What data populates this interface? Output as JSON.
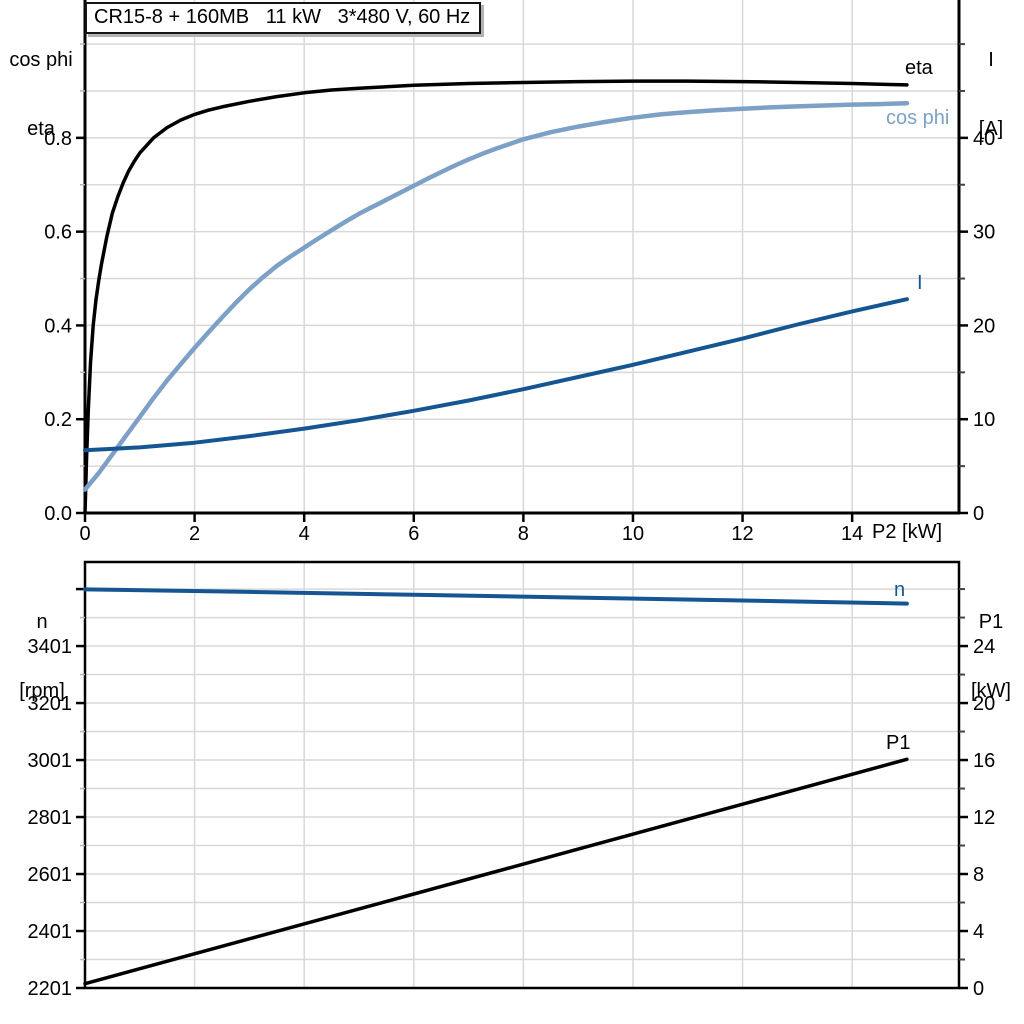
{
  "title_box": "CR15-8 + 160MB   11 kW   3*480 V, 60 Hz",
  "colors": {
    "black": "#000000",
    "light_blue": "#7DA0C6",
    "dark_blue": "#155592",
    "grid": "#d8d8d8",
    "minor_tick": "#b8b8b8",
    "frame": "#000000",
    "shadow": "#b3b3b3"
  },
  "chart_data": [
    {
      "type": "line",
      "id": "efficiency-powerfactor-current-vs-P2",
      "x_axis": {
        "title": "P2 [kW]",
        "tick_labels": [
          "0",
          "2",
          "4",
          "6",
          "8",
          "10",
          "12",
          "14"
        ],
        "tick_values": [
          0,
          2,
          4,
          6,
          8,
          10,
          12,
          14
        ],
        "range": [
          0,
          15.95
        ],
        "grid_step": 2
      },
      "y_left": {
        "title_line1": "cos phi",
        "title_line2": "eta",
        "tick_labels": [
          "0.0",
          "0.2",
          "0.4",
          "0.6",
          "0.8"
        ],
        "tick_values": [
          0,
          0.2,
          0.4,
          0.6,
          0.8
        ],
        "extra_ticks": [],
        "range": [
          0,
          1.094
        ],
        "minor_step": 0.1
      },
      "y_right": {
        "title_line1": "I",
        "title_line2": "[A]",
        "tick_labels": [
          "0",
          "10",
          "20",
          "30",
          "40"
        ],
        "tick_values": [
          0,
          10,
          20,
          30,
          40
        ],
        "range": [
          0,
          54.7
        ],
        "minor_step": 5
      },
      "series": [
        {
          "name": "eta",
          "label": "eta",
          "axis": "left",
          "color_key": "black",
          "width": 3.5,
          "points": [
            [
              0,
              0
            ],
            [
              0.03,
              0.12
            ],
            [
              0.06,
              0.22
            ],
            [
              0.1,
              0.32
            ],
            [
              0.15,
              0.4
            ],
            [
              0.2,
              0.455
            ],
            [
              0.25,
              0.495
            ],
            [
              0.3,
              0.53
            ],
            [
              0.4,
              0.59
            ],
            [
              0.5,
              0.64
            ],
            [
              0.6,
              0.675
            ],
            [
              0.7,
              0.705
            ],
            [
              0.8,
              0.73
            ],
            [
              0.9,
              0.75
            ],
            [
              1.0,
              0.768
            ],
            [
              1.25,
              0.8
            ],
            [
              1.5,
              0.822
            ],
            [
              1.75,
              0.838
            ],
            [
              2.0,
              0.85
            ],
            [
              2.25,
              0.859
            ],
            [
              2.5,
              0.866
            ],
            [
              3.0,
              0.878
            ],
            [
              3.5,
              0.888
            ],
            [
              4.0,
              0.896
            ],
            [
              4.5,
              0.902
            ],
            [
              5.0,
              0.906
            ],
            [
              5.5,
              0.909
            ],
            [
              6.0,
              0.912
            ],
            [
              6.5,
              0.914
            ],
            [
              7.0,
              0.916
            ],
            [
              8.0,
              0.918
            ],
            [
              9.0,
              0.92
            ],
            [
              10.0,
              0.921
            ],
            [
              11.0,
              0.921
            ],
            [
              12.0,
              0.92
            ],
            [
              13.0,
              0.918
            ],
            [
              14.0,
              0.916
            ],
            [
              15.0,
              0.913
            ]
          ]
        },
        {
          "name": "cos phi",
          "label": "cos phi",
          "axis": "left",
          "color_key": "light_blue",
          "width": 4.5,
          "points": [
            [
              0,
              0.05
            ],
            [
              0.25,
              0.085
            ],
            [
              0.5,
              0.125
            ],
            [
              0.75,
              0.165
            ],
            [
              1.0,
              0.205
            ],
            [
              1.25,
              0.245
            ],
            [
              1.5,
              0.283
            ],
            [
              1.75,
              0.318
            ],
            [
              2.0,
              0.352
            ],
            [
              2.25,
              0.385
            ],
            [
              2.5,
              0.417
            ],
            [
              2.75,
              0.448
            ],
            [
              3.0,
              0.477
            ],
            [
              3.25,
              0.503
            ],
            [
              3.5,
              0.527
            ],
            [
              3.75,
              0.547
            ],
            [
              4.0,
              0.566
            ],
            [
              4.25,
              0.585
            ],
            [
              4.5,
              0.603
            ],
            [
              4.75,
              0.621
            ],
            [
              5.0,
              0.638
            ],
            [
              5.25,
              0.653
            ],
            [
              5.5,
              0.668
            ],
            [
              5.75,
              0.683
            ],
            [
              6.0,
              0.698
            ],
            [
              6.25,
              0.713
            ],
            [
              6.5,
              0.727
            ],
            [
              6.75,
              0.741
            ],
            [
              7.0,
              0.754
            ],
            [
              7.25,
              0.766
            ],
            [
              7.5,
              0.777
            ],
            [
              7.75,
              0.787
            ],
            [
              8.0,
              0.797
            ],
            [
              8.5,
              0.812
            ],
            [
              9.0,
              0.824
            ],
            [
              9.5,
              0.834
            ],
            [
              10.0,
              0.843
            ],
            [
              10.5,
              0.85
            ],
            [
              11.0,
              0.855
            ],
            [
              11.5,
              0.859
            ],
            [
              12.0,
              0.862
            ],
            [
              12.5,
              0.865
            ],
            [
              13.0,
              0.867
            ],
            [
              13.5,
              0.869
            ],
            [
              14.0,
              0.871
            ],
            [
              14.5,
              0.872
            ],
            [
              15.0,
              0.874
            ]
          ]
        },
        {
          "name": "I",
          "label": "I",
          "axis": "right",
          "color_key": "dark_blue",
          "width": 4,
          "points": [
            [
              0,
              6.7
            ],
            [
              1,
              7.0
            ],
            [
              2,
              7.5
            ],
            [
              3,
              8.2
            ],
            [
              4,
              9.0
            ],
            [
              5,
              9.9
            ],
            [
              6,
              10.9
            ],
            [
              7,
              12.0
            ],
            [
              8,
              13.2
            ],
            [
              9,
              14.5
            ],
            [
              10,
              15.8
            ],
            [
              11,
              17.2
            ],
            [
              12,
              18.6
            ],
            [
              13,
              20.1
            ],
            [
              14,
              21.5
            ],
            [
              15,
              22.8
            ]
          ]
        }
      ]
    },
    {
      "type": "line",
      "id": "speed-inputpower-vs-P2",
      "x_axis": {
        "title": "",
        "tick_labels": [],
        "tick_values": [],
        "range": [
          0,
          15.95
        ],
        "grid_step": 2
      },
      "y_left": {
        "title_line1": "n",
        "title_line2": "[rpm]",
        "tick_labels": [
          "3401",
          "3201",
          "3001",
          "2801",
          "2601",
          "2401",
          "2201"
        ],
        "tick_values": [
          3401,
          3201,
          3001,
          2801,
          2601,
          2401,
          2201
        ],
        "extra_ticks": [
          3601
        ],
        "range": [
          2201,
          3696
        ],
        "minor_step": 100
      },
      "y_right": {
        "title_line1": "P1",
        "title_line2": "[kW]",
        "tick_labels": [
          "24",
          "20",
          "16",
          "12",
          "8",
          "4",
          "0"
        ],
        "tick_values": [
          24,
          20,
          16,
          12,
          8,
          4,
          0
        ],
        "range": [
          0,
          29.9
        ],
        "minor_step": 2
      },
      "series": [
        {
          "name": "n",
          "label": "n",
          "axis": "left",
          "color_key": "dark_blue",
          "width": 4,
          "points": [
            [
              0,
              3600
            ],
            [
              3,
              3591
            ],
            [
              6,
              3581
            ],
            [
              9,
              3571
            ],
            [
              12,
              3561
            ],
            [
              15,
              3550
            ]
          ]
        },
        {
          "name": "P1",
          "label": "P1",
          "axis": "right",
          "color_key": "black",
          "width": 3.5,
          "points": [
            [
              0,
              0.3
            ],
            [
              3,
              3.45
            ],
            [
              6,
              6.6
            ],
            [
              9,
              9.75
            ],
            [
              12,
              12.9
            ],
            [
              15,
              16.05
            ]
          ]
        }
      ]
    }
  ]
}
